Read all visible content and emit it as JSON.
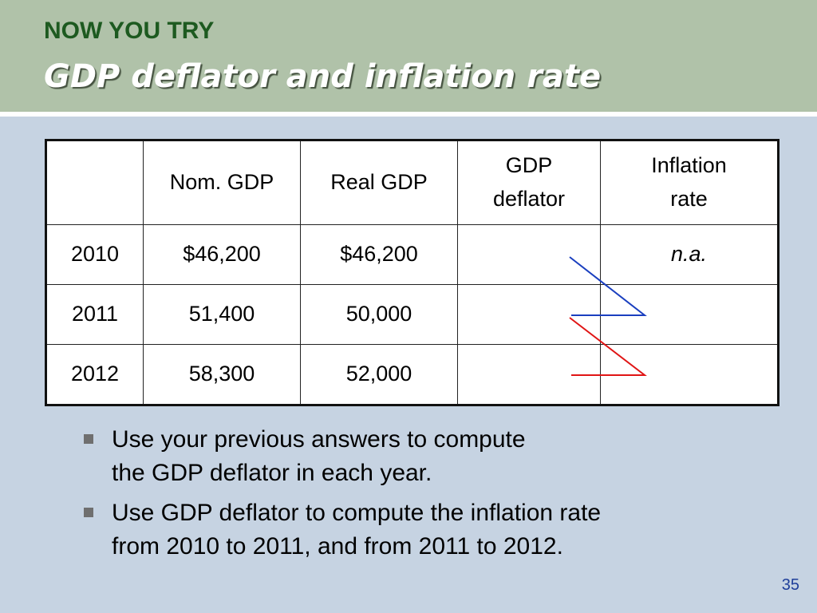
{
  "header": {
    "kicker": "NOW YOU TRY",
    "title": "GDP deflator and inflation rate"
  },
  "table": {
    "headers": [
      "",
      "Nom. GDP",
      "Real GDP",
      [
        "GDP",
        "deflator"
      ],
      [
        "Inflation",
        "rate"
      ]
    ],
    "rows": [
      [
        "2010",
        "$46,200",
        "$46,200",
        "",
        "n.a."
      ],
      [
        "2011",
        "51,400",
        "50,000",
        "",
        ""
      ],
      [
        "2012",
        "58,300",
        "52,000",
        "",
        ""
      ]
    ]
  },
  "annotations": {
    "blue_color": "#1a3fbf",
    "red_color": "#e01515"
  },
  "bullets": [
    [
      "Use your previous answers to compute",
      "the GDP deflator in each year."
    ],
    [
      "Use GDP deflator to compute the inflation rate",
      "from 2010 to 2011, and from 2011 to 2012."
    ]
  ],
  "footer": {
    "page_number": "35"
  }
}
